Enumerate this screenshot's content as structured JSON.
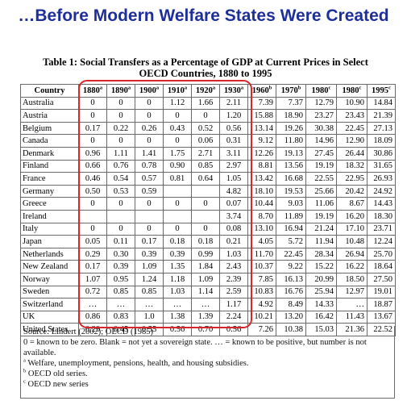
{
  "headline": "…Before Modern Welfare States Were Created",
  "caption": {
    "line1": "Table 1: Social Transfers as a Percentage of GDP at Current Prices in Select",
    "line2": "OECD Countries, 1880 to 1995"
  },
  "table": {
    "country_header": "Country",
    "years": [
      {
        "label": "1880",
        "sup": "a"
      },
      {
        "label": "1890",
        "sup": "a"
      },
      {
        "label": "1900",
        "sup": "a"
      },
      {
        "label": "1910",
        "sup": "a"
      },
      {
        "label": "1920",
        "sup": "a"
      },
      {
        "label": "1930",
        "sup": "a"
      },
      {
        "label": "1960",
        "sup": "b"
      },
      {
        "label": "1970",
        "sup": "b"
      },
      {
        "label": "1980",
        "sup": "c"
      },
      {
        "label": "1980",
        "sup": "c"
      },
      {
        "label": "1995",
        "sup": "c"
      }
    ],
    "rows": [
      {
        "country": "Australia",
        "values": [
          "0",
          "0",
          "0",
          "1.12",
          "1.66",
          "2.11",
          "7.39",
          "7.37",
          "12.79",
          "10.90",
          "14.84"
        ]
      },
      {
        "country": "Austria",
        "values": [
          "0",
          "0",
          "0",
          "0",
          "0",
          "1.20",
          "15.88",
          "18.90",
          "23.27",
          "23.43",
          "21.39"
        ]
      },
      {
        "country": "Belgium",
        "values": [
          "0.17",
          "0.22",
          "0.26",
          "0.43",
          "0.52",
          "0.56",
          "13.14",
          "19.26",
          "30.38",
          "22.45",
          "27.13"
        ]
      },
      {
        "country": "Canada",
        "values": [
          "0",
          "0",
          "0",
          "0",
          "0.06",
          "0.31",
          "9.12",
          "11.80",
          "14.96",
          "12.90",
          "18.09"
        ]
      },
      {
        "country": "Denmark",
        "values": [
          "0.96",
          "1.11",
          "1.41",
          "1.75",
          "2.71",
          "3.11",
          "12.26",
          "19.13",
          "27.45",
          "26.44",
          "30.86"
        ]
      },
      {
        "country": "Finland",
        "values": [
          "0.66",
          "0.76",
          "0.78",
          "0.90",
          "0.85",
          "2.97",
          "8.81",
          "13.56",
          "19.19",
          "18.32",
          "31.65"
        ]
      },
      {
        "country": "France",
        "values": [
          "0.46",
          "0.54",
          "0.57",
          "0.81",
          "0.64",
          "1.05",
          "13.42",
          "16.68",
          "22.55",
          "22.95",
          "26.93"
        ]
      },
      {
        "country": "Germany",
        "values": [
          "0.50",
          "0.53",
          "0.59",
          "",
          "",
          "4.82",
          "18.10",
          "19.53",
          "25.66",
          "20.42",
          "24.92"
        ]
      },
      {
        "country": "Greece",
        "values": [
          "0",
          "0",
          "0",
          "0",
          "0",
          "0.07",
          "10.44",
          "9.03",
          "11.06",
          "8.67",
          "14.43"
        ]
      },
      {
        "country": "Ireland",
        "values": [
          "",
          "",
          "",
          "",
          "",
          "3.74",
          "8.70",
          "11.89",
          "19.19",
          "16.20",
          "18.30"
        ]
      },
      {
        "country": "Italy",
        "values": [
          "0",
          "0",
          "0",
          "0",
          "0",
          "0.08",
          "13.10",
          "16.94",
          "21.24",
          "17.10",
          "23.71"
        ]
      },
      {
        "country": "Japan",
        "values": [
          "0.05",
          "0.11",
          "0.17",
          "0.18",
          "0.18",
          "0.21",
          "4.05",
          "5.72",
          "11.94",
          "10.48",
          "12.24"
        ]
      },
      {
        "country": "Netherlands",
        "values": [
          "0.29",
          "0.30",
          "0.39",
          "0.39",
          "0.99",
          "1.03",
          "11.70",
          "22.45",
          "28.34",
          "26.94",
          "25.70"
        ]
      },
      {
        "country": "New Zealand",
        "values": [
          "0.17",
          "0.39",
          "1.09",
          "1.35",
          "1.84",
          "2.43",
          "10.37",
          "9.22",
          "15.22",
          "16.22",
          "18.64"
        ]
      },
      {
        "country": "Norway",
        "values": [
          "1.07",
          "0.95",
          "1.24",
          "1.18",
          "1.09",
          "2.39",
          "7.85",
          "16.13",
          "20.99",
          "18.50",
          "27.50"
        ]
      },
      {
        "country": "Sweden",
        "values": [
          "0.72",
          "0.85",
          "0.85",
          "1.03",
          "1.14",
          "2.59",
          "10.83",
          "16.76",
          "25.94",
          "12.97",
          "19.01"
        ]
      },
      {
        "country": "Switzerland",
        "values": [
          "…",
          "…",
          "…",
          "…",
          "…",
          "1.17",
          "4.92",
          "8.49",
          "14.33",
          "…",
          "18.87"
        ]
      },
      {
        "country": "UK",
        "values": [
          "0.86",
          "0.83",
          "1.0",
          "1.38",
          "1.39",
          "2.24",
          "10.21",
          "13.20",
          "16.42",
          "11.43",
          "13.67"
        ]
      },
      {
        "country": "United States",
        "values": [
          "0.29",
          "0.45",
          "0.55",
          "0.56",
          "0.70",
          "0.56",
          "7.26",
          "10.38",
          "15.03",
          "21.36",
          "22.52"
        ]
      }
    ]
  },
  "notes": {
    "source": "Source: Lindert (2002); OECD (1985)",
    "legend": "0 = known to be zero. Blank = not yet a sovereign state. … = known to be positive, but number is not available.",
    "note_a": "Welfare, unemployment, pensions, health, and housing subsidies.",
    "note_b": "OECD old series.",
    "note_c": "OECD new series",
    "marker_a": "a",
    "marker_b": "b",
    "marker_c": "c"
  },
  "colors": {
    "headline": "#1f2f9a",
    "highlight_box": "#d8262a"
  }
}
